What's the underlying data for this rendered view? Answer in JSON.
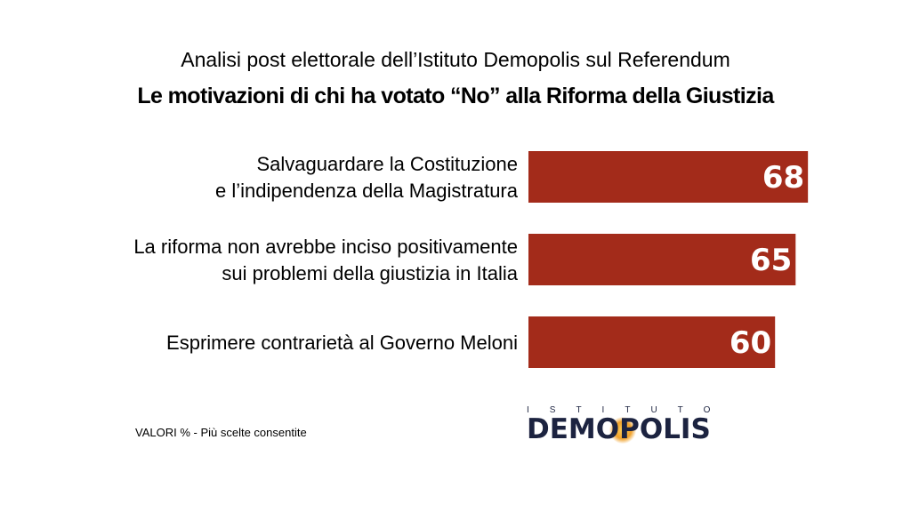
{
  "header": {
    "title": "Analisi post elettorale dell’Istituto Demopolis sul Referendum",
    "subtitle": "Le motivazioni di chi ha votato “No” alla Riforma della Giustizia"
  },
  "chart_data": {
    "type": "bar",
    "orientation": "horizontal",
    "title": "Analisi post elettorale dell’Istituto Demopolis sul Referendum",
    "subtitle": "Le motivazioni di chi ha votato “No” alla Riforma della Giustizia",
    "categories": [
      [
        "Salvaguardare la Costituzione",
        "e l’indipendenza della Magistratura"
      ],
      [
        "La riforma non avrebbe inciso positivamente",
        "sui problemi della giustizia in Italia"
      ],
      [
        "Esprimere contrarietà al Governo Meloni"
      ]
    ],
    "values": [
      68,
      65,
      60
    ],
    "value_labels": [
      "68",
      "65",
      "60"
    ],
    "bar_color": "#a32b1a",
    "grid": false,
    "legend": "none"
  },
  "footnote": "VALORI % - Più scelte consentite",
  "logo": {
    "top_text": "ISTITUTO",
    "main_text": "DEMOPOLIS",
    "color": "#1c2340",
    "sun_color": "#f0a12a"
  }
}
